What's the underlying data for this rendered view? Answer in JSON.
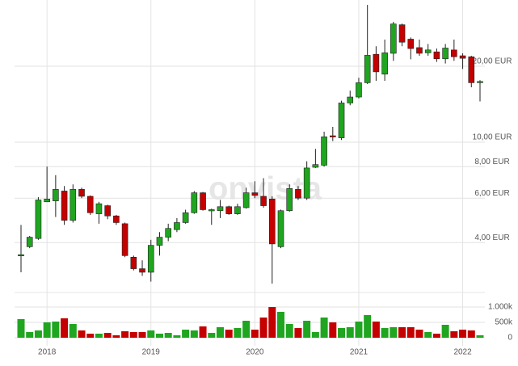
{
  "chart_data": {
    "type": "candlestick",
    "watermark": "onvista",
    "categories": [
      null,
      null,
      null,
      "2018",
      null,
      null,
      null,
      null,
      null,
      null,
      null,
      null,
      null,
      null,
      null,
      "2019",
      null,
      null,
      null,
      null,
      null,
      null,
      null,
      null,
      null,
      null,
      null,
      "2020",
      null,
      null,
      null,
      null,
      null,
      null,
      null,
      null,
      null,
      null,
      null,
      "2021",
      null,
      null,
      null,
      null,
      null,
      null,
      null,
      null,
      null,
      null,
      null,
      "2022",
      null,
      null
    ],
    "open": [
      3.55,
      3.85,
      4.15,
      5.8,
      5.85,
      6.4,
      4.9,
      6.5,
      6.1,
      5.2,
      5.6,
      5.1,
      4.75,
      3.5,
      3.15,
      3.05,
      3.9,
      4.2,
      4.5,
      4.8,
      5.25,
      6.3,
      5.4,
      5.35,
      5.55,
      5.2,
      5.5,
      6.3,
      6.1,
      5.95,
      3.85,
      5.35,
      6.5,
      6.0,
      7.95,
      8.1,
      10.6,
      10.4,
      14.3,
      15.1,
      17.2,
      22.3,
      18.6,
      22.5,
      29.2,
      25.6,
      23.7,
      22.6,
      22.8,
      21.4,
      23.2,
      22,
      21.8,
      17.3
    ],
    "high": [
      4.7,
      4.25,
      6.05,
      8.0,
      7.4,
      6.7,
      6.8,
      6.6,
      6.15,
      5.8,
      5.65,
      5.15,
      4.8,
      3.55,
      3.4,
      4.1,
      4.4,
      4.75,
      5.0,
      5.4,
      6.4,
      6.35,
      5.45,
      5.9,
      5.6,
      5.7,
      6.6,
      7.0,
      7.2,
      6.1,
      5.4,
      6.8,
      6.7,
      8.4,
      9.4,
      11.0,
      11.5,
      14.6,
      16,
      18,
      35,
      24,
      25.5,
      30,
      29.5,
      26,
      25.5,
      24.5,
      23.5,
      24.5,
      25.5,
      22.5,
      22,
      17.6
    ],
    "low": [
      3.05,
      3.8,
      4.1,
      5.8,
      5.05,
      4.7,
      4.8,
      6.0,
      5.15,
      4.75,
      4.95,
      4.7,
      3.5,
      3.1,
      2.95,
      2.8,
      3.55,
      4.05,
      4.4,
      4.75,
      5.2,
      5.35,
      4.7,
      5.0,
      5.15,
      5.15,
      5.45,
      6.0,
      5.5,
      2.75,
      3.8,
      5.3,
      5.9,
      5.9,
      7.9,
      8.0,
      10.1,
      10.2,
      14,
      14.9,
      17,
      17.5,
      17.5,
      21,
      24,
      21.3,
      22,
      22,
      20.8,
      20.5,
      21,
      19.5,
      16.5,
      14.5
    ],
    "close": [
      3.58,
      4.2,
      5.9,
      5.95,
      6.5,
      4.9,
      6.5,
      6.1,
      5.25,
      5.7,
      5.1,
      4.8,
      3.55,
      3.15,
      3.05,
      3.9,
      4.2,
      4.55,
      4.8,
      5.25,
      6.3,
      5.4,
      5.4,
      5.55,
      5.2,
      5.55,
      6.3,
      6.15,
      5.6,
      3.95,
      5.35,
      6.55,
      6.0,
      7.9,
      8.15,
      10.5,
      10.5,
      14.3,
      15.1,
      17.2,
      22.1,
      19.0,
      22.6,
      29.4,
      24.9,
      23.5,
      22.5,
      23.2,
      21.4,
      23.6,
      21.8,
      21.5,
      17.2,
      17.4
    ],
    "volume": [
      605000,
      185000,
      237000,
      500000,
      526000,
      632000,
      447000,
      237000,
      132000,
      132000,
      158000,
      79000,
      210000,
      185000,
      185000,
      237000,
      132000,
      158000,
      79000,
      263000,
      237000,
      368000,
      158000,
      342000,
      263000,
      316000,
      553000,
      263000,
      658000,
      1000000,
      842000,
      447000,
      316000,
      553000,
      185000,
      658000,
      500000,
      316000,
      342000,
      526000,
      737000,
      526000,
      316000,
      342000,
      342000,
      342000,
      263000,
      185000,
      132000,
      421000,
      210000,
      263000,
      237000,
      79000
    ],
    "log_y": true,
    "ylim": [
      2.67,
      36.6
    ],
    "yticks": [
      {
        "value": 4,
        "label": "4,00 EUR"
      },
      {
        "value": 6,
        "label": "6,00 EUR"
      },
      {
        "value": 8,
        "label": "8,00 EUR"
      },
      {
        "value": 10,
        "label": "10,00 EUR"
      },
      {
        "value": 20,
        "label": "20,00 EUR"
      }
    ],
    "y2lim": [
      0,
      1200000
    ],
    "y2ticks": [
      0,
      {
        "value": 500000,
        "label": "500k"
      },
      {
        "value": 1000000,
        "label": "1.000k"
      }
    ],
    "grid": true,
    "up_color": "#1fa51f",
    "down_color": "#c40000"
  }
}
